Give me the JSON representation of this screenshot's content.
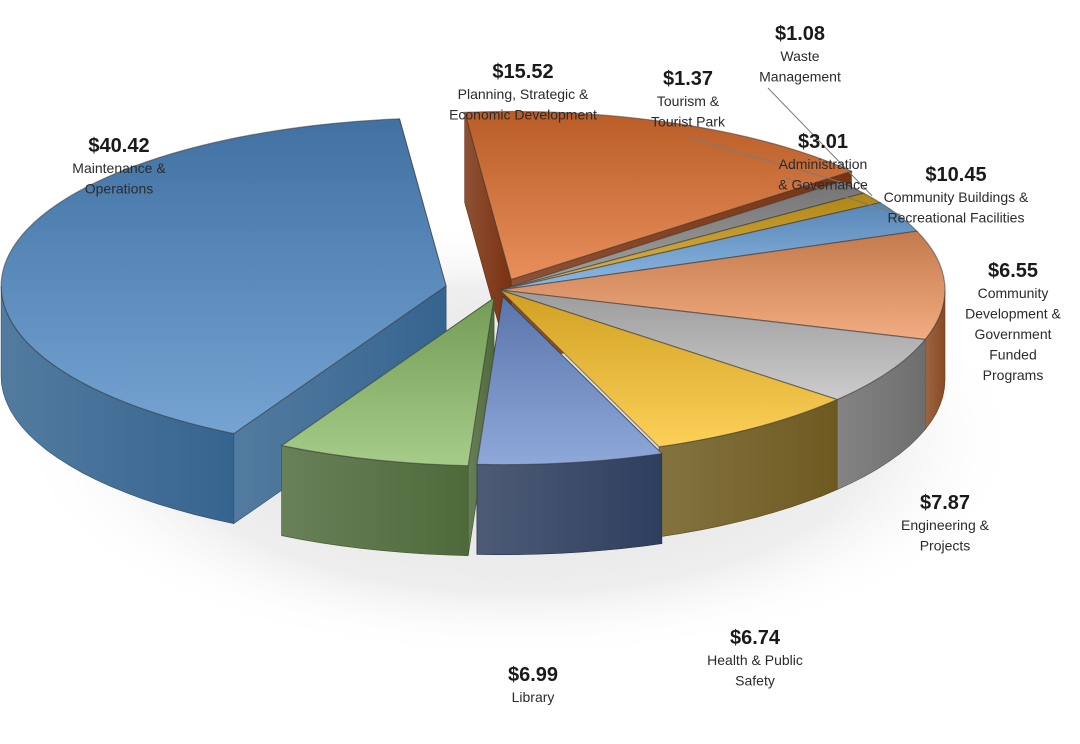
{
  "chart_data": {
    "type": "pie",
    "style": "3d-exploded",
    "title": "",
    "slices": [
      {
        "label": "Planning, Strategic & Economic Development",
        "value_label": "$15.52",
        "value": 15.52,
        "color": "#E2702E",
        "dark": "#7A3210"
      },
      {
        "label": "Tourism & Tourist Park",
        "value_label": "$1.37",
        "value": 1.37,
        "color": "#8C8C8C",
        "dark": "#4A4A4A"
      },
      {
        "label": "Waste Management",
        "value_label": "$1.08",
        "value": 1.08,
        "color": "#D6A21A",
        "dark": "#7A5A08"
      },
      {
        "label": "Administration & Governance",
        "value_label": "$3.01",
        "value": 3.01,
        "color": "#6BA4DD",
        "dark": "#2E5F92"
      },
      {
        "label": "Community Buildings & Recreational Facilities",
        "value_label": "$10.45",
        "value": 10.45,
        "color": "#EE955E",
        "dark": "#8A4A22"
      },
      {
        "label": "Community Development & Government Funded Programs",
        "value_label": "$6.55",
        "value": 6.55,
        "color": "#BDBDBD",
        "dark": "#6E6E6E"
      },
      {
        "label": "Engineering & Projects",
        "value_label": "$7.87",
        "value": 7.87,
        "color": "#FCC329",
        "dark": "#6E5A20"
      },
      {
        "label": "Health & Public Safety",
        "value_label": "$6.74",
        "value": 6.74,
        "color": "#6E8FD0",
        "dark": "#2E3E5E"
      },
      {
        "label": "Library",
        "value_label": "$6.99",
        "value": 6.99,
        "color": "#8DBE68",
        "dark": "#4E6A3A"
      },
      {
        "label": "Maintenance & Operations",
        "value_label": "$40.42",
        "value": 40.42,
        "color": "#4E8AC6",
        "dark": "#35648F"
      }
    ],
    "labels": [
      {
        "value": "$15.52",
        "lines": [
          "Planning, Strategic &",
          "Economic Development"
        ]
      },
      {
        "value": "$1.37",
        "lines": [
          "Tourism &",
          "Tourist Park"
        ]
      },
      {
        "value": "$1.08",
        "lines": [
          "Waste",
          "Management"
        ]
      },
      {
        "value": "$3.01",
        "lines": [
          "Administration",
          "& Governance"
        ]
      },
      {
        "value": "$10.45",
        "lines": [
          "Community Buildings &",
          "Recreational Facilities"
        ]
      },
      {
        "value": "$6.55",
        "lines": [
          "Community",
          "Development &",
          "Government",
          "Funded",
          "Programs"
        ]
      },
      {
        "value": "$7.87",
        "lines": [
          "Engineering &",
          "Projects"
        ]
      },
      {
        "value": "$6.74",
        "lines": [
          "Health & Public",
          "Safety"
        ]
      },
      {
        "value": "$6.99",
        "lines": [
          "Library"
        ]
      },
      {
        "value": "$40.42",
        "lines": [
          "Maintenance &",
          "Operations"
        ]
      }
    ]
  }
}
